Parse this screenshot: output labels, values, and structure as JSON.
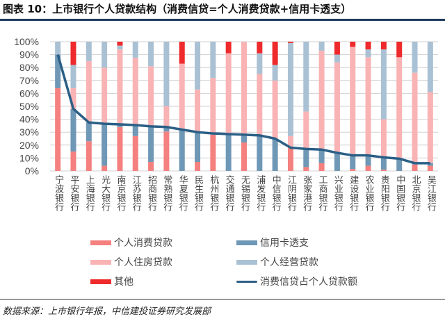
{
  "title": "图表 10：上市银行个人贷款结构（消费信贷=个人消费贷款+信用卡透支）",
  "source": "数据来源：上市银行年报，中信建投证券研究发展部",
  "chart_data": {
    "type": "bar",
    "stacked": true,
    "title": "",
    "xlabel": "",
    "ylabel": "",
    "ylim": [
      0,
      100
    ],
    "yticks": [
      "0%",
      "10%",
      "20%",
      "30%",
      "40%",
      "50%",
      "60%",
      "70%",
      "80%",
      "90%",
      "100%"
    ],
    "grid": true,
    "legend_position": "bottom",
    "categories": [
      "宁波银行",
      "平安银行",
      "上海银行",
      "光大银行",
      "南京银行",
      "江苏银行",
      "招商银行",
      "常熟银行",
      "华夏银行",
      "民生银行",
      "杭州银行",
      "交通银行",
      "无锡银行",
      "浦发银行",
      "中信银行",
      "江阴银行",
      "张家港行",
      "工商银行",
      "兴业银行",
      "建设银行",
      "农业银行",
      "贵阳银行",
      "中国银行",
      "北京银行",
      "吴江银行"
    ],
    "series": [
      {
        "name": "个人消费贷款",
        "color": "#f4817f",
        "values": [
          64,
          15,
          23,
          4,
          34,
          27,
          7,
          30.5,
          0,
          7,
          28,
          0,
          22,
          0,
          0,
          18,
          3,
          6,
          0,
          1.5,
          4,
          1,
          0,
          5,
          4
        ]
      },
      {
        "name": "信用卡透支",
        "color": "#6f97b6",
        "values": [
          26,
          33,
          14.5,
          32.5,
          2,
          8.5,
          27.5,
          3.5,
          32,
          23,
          1,
          28.5,
          6,
          27.5,
          25,
          0,
          14,
          10.5,
          14,
          10.5,
          8,
          9.5,
          9.5,
          1,
          2
        ]
      },
      {
        "name": "个人住房贷款",
        "color": "#f9b3b4",
        "values": [
          0,
          16,
          47.5,
          43.5,
          58,
          52,
          46.5,
          16,
          51,
          33,
          43,
          62.5,
          72,
          47.5,
          45,
          9,
          29,
          76.5,
          70,
          84,
          76,
          29.5,
          78.5,
          70,
          55
        ]
      },
      {
        "name": "个人经营贷款",
        "color": "#aac1d4",
        "values": [
          10,
          18,
          15,
          20,
          3,
          12.5,
          19,
          50,
          0,
          37,
          28,
          0,
          0,
          16,
          12,
          72,
          54,
          7,
          6,
          0,
          6,
          54,
          0,
          24,
          39
        ]
      },
      {
        "name": "其他",
        "color": "#ee2a2c",
        "values": [
          0,
          18,
          0,
          0,
          3,
          0,
          0,
          0,
          17,
          0,
          0,
          9,
          0,
          9,
          18,
          1,
          0,
          0,
          10,
          4,
          6,
          6,
          12,
          0,
          0
        ]
      }
    ],
    "line_series": {
      "name": "消费信贷占个人贷款额",
      "color": "#2b5f86",
      "values": [
        90,
        48,
        37.5,
        36.5,
        36,
        35.5,
        34.5,
        34,
        32,
        30,
        29,
        28.5,
        28,
        27.5,
        25,
        18,
        17,
        16.5,
        14,
        12,
        12,
        10.5,
        9.5,
        6,
        6
      ]
    }
  }
}
